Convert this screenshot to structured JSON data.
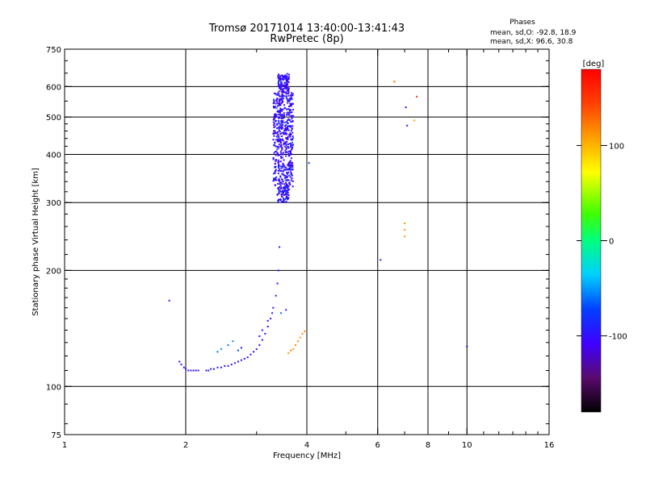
{
  "title": "Tromsø 20171014 13:40:00-13:41:43",
  "subtitle": "RwPretec (8p)",
  "phases": {
    "heading": "Phases",
    "line_o": "mean, sd,O: -92.8, 18.9",
    "line_x": "mean, sd,X:  96.6, 30.8"
  },
  "chart_data": {
    "type": "scatter",
    "xlabel": "Frequency [MHz]",
    "ylabel": "Stationary phase Virtual Height [km]",
    "xscale": "log",
    "yscale": "log",
    "xlim": [
      1,
      16
    ],
    "ylim": [
      75,
      750
    ],
    "xticks": [
      1,
      2,
      4,
      6,
      8,
      10,
      16
    ],
    "xtick_labels": [
      "1",
      "2",
      "4",
      "6",
      "8",
      "10",
      "16"
    ],
    "yticks": [
      75,
      100,
      200,
      300,
      400,
      500,
      600,
      750
    ],
    "ytick_labels": [
      "75",
      "100",
      "200",
      "300",
      "400",
      "500",
      "600",
      "750"
    ],
    "grid_x": [
      2,
      4,
      6,
      8,
      10
    ],
    "grid_y": [
      100,
      200,
      300,
      400,
      500,
      600
    ],
    "grid": true,
    "colorbar": {
      "label": "[deg]",
      "range": [
        -180,
        180
      ],
      "ticks": [
        100,
        0,
        -100
      ],
      "tick_labels": [
        "100",
        "0",
        "-100"
      ]
    },
    "points": [
      [
        1.82,
        167,
        -100
      ],
      [
        1.93,
        116,
        -100
      ],
      [
        1.95,
        114,
        -95
      ],
      [
        1.98,
        112,
        -100
      ],
      [
        2.0,
        111,
        -110
      ],
      [
        2.03,
        110,
        -105
      ],
      [
        2.06,
        110,
        -100
      ],
      [
        2.09,
        110,
        -100
      ],
      [
        2.12,
        110,
        -110
      ],
      [
        2.15,
        110,
        -100
      ],
      [
        2.25,
        110,
        -100
      ],
      [
        2.28,
        110,
        -95
      ],
      [
        2.31,
        111,
        -90
      ],
      [
        2.35,
        111,
        -100
      ],
      [
        2.4,
        112,
        -100
      ],
      [
        2.45,
        112,
        -95
      ],
      [
        2.5,
        113,
        -100
      ],
      [
        2.55,
        113,
        -100
      ],
      [
        2.6,
        114,
        -95
      ],
      [
        2.65,
        115,
        -100
      ],
      [
        2.7,
        116,
        -100
      ],
      [
        2.75,
        117,
        -100
      ],
      [
        2.8,
        118,
        -105
      ],
      [
        2.85,
        119,
        -100
      ],
      [
        2.9,
        121,
        -100
      ],
      [
        2.95,
        123,
        -100
      ],
      [
        3.0,
        125,
        -105
      ],
      [
        3.05,
        128,
        -100
      ],
      [
        3.1,
        132,
        -100
      ],
      [
        3.15,
        137,
        -100
      ],
      [
        3.2,
        143,
        -100
      ],
      [
        3.25,
        150,
        -100
      ],
      [
        3.3,
        160,
        -100
      ],
      [
        3.35,
        172,
        -100
      ],
      [
        3.38,
        185,
        -100
      ],
      [
        3.4,
        200,
        -105
      ],
      [
        3.42,
        230,
        -100
      ],
      [
        2.4,
        123,
        -60
      ],
      [
        2.45,
        125,
        -50
      ],
      [
        2.55,
        128,
        -60
      ],
      [
        2.62,
        131,
        -55
      ],
      [
        2.7,
        124,
        -70
      ],
      [
        2.75,
        126,
        -100
      ],
      [
        3.05,
        135,
        -100
      ],
      [
        3.1,
        140,
        -95
      ],
      [
        3.2,
        148,
        -100
      ],
      [
        3.28,
        155,
        -90
      ],
      [
        3.45,
        155,
        -60
      ],
      [
        3.55,
        158,
        -100
      ],
      [
        3.6,
        122,
        110
      ],
      [
        3.65,
        124,
        120
      ],
      [
        3.7,
        125,
        110
      ],
      [
        3.75,
        128,
        115
      ],
      [
        3.8,
        131,
        120
      ],
      [
        3.85,
        134,
        110
      ],
      [
        3.9,
        137,
        115
      ],
      [
        3.95,
        139,
        120
      ],
      [
        3.58,
        325,
        -40
      ],
      [
        4.05,
        380,
        -70
      ],
      [
        6.1,
        213,
        -100
      ],
      [
        6.6,
        618,
        130
      ],
      [
        7.05,
        530,
        -100
      ],
      [
        7.5,
        565,
        150
      ],
      [
        7.1,
        475,
        -100
      ],
      [
        7.4,
        490,
        110
      ],
      [
        7.0,
        265,
        110
      ],
      [
        7.0,
        255,
        115
      ],
      [
        7.0,
        245,
        110
      ],
      [
        10.0,
        127,
        -100
      ]
    ],
    "cluster": {
      "x_range": [
        3.3,
        3.7
      ],
      "y_range": [
        300,
        650
      ],
      "phase_range": [
        -110,
        -60
      ],
      "count": 700
    }
  }
}
